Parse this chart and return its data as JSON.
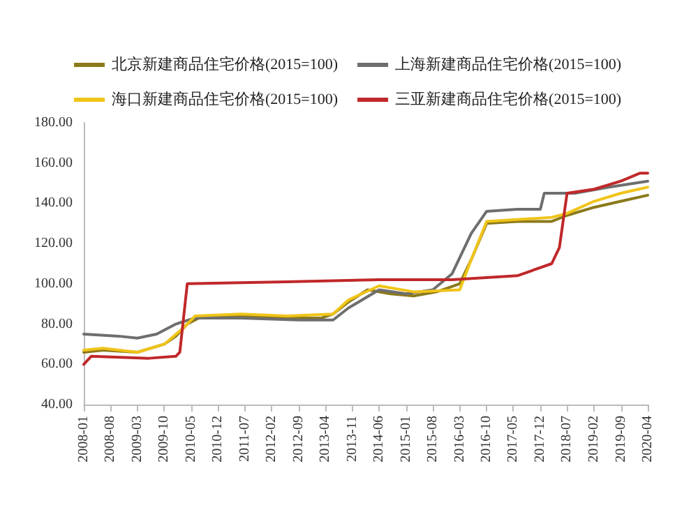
{
  "chart_data": {
    "type": "line",
    "legend": "top",
    "grid": false,
    "marker": "none",
    "line_style": "solid",
    "xlim": [
      "2008-01",
      "2020-04"
    ],
    "xticks": [
      "2008-01",
      "2008-08",
      "2009-03",
      "2009-10",
      "2010-05",
      "2010-12",
      "2011-07",
      "2012-02",
      "2012-09",
      "2013-04",
      "2013-11",
      "2014-06",
      "2015-01",
      "2015-08",
      "2016-03",
      "2016-10",
      "2017-05",
      "2017-12",
      "2018-07",
      "2019-02",
      "2019-09",
      "2020-04"
    ],
    "ylim": [
      40,
      180
    ],
    "yticks": [
      {
        "value": 40,
        "label": "40.00"
      },
      {
        "value": 60,
        "label": "60.00"
      },
      {
        "value": 80,
        "label": "80.00"
      },
      {
        "value": 100,
        "label": "100.00"
      },
      {
        "value": 120,
        "label": "120.00"
      },
      {
        "value": 140,
        "label": "140.00"
      },
      {
        "value": 160,
        "label": "160.00"
      },
      {
        "value": 180,
        "label": "180.00"
      }
    ],
    "series": [
      {
        "name": "北京新建商品住宅价格(2015=100)",
        "color": "#8b7a1a",
        "x": [
          "2008-01",
          "2008-06",
          "2009-03",
          "2009-10",
          "2010-01",
          "2010-04",
          "2010-07",
          "2011-06",
          "2012-06",
          "2013-03",
          "2013-06",
          "2013-10",
          "2014-03",
          "2014-09",
          "2015-03",
          "2015-09",
          "2016-03",
          "2016-06",
          "2016-10",
          "2017-06",
          "2018-03",
          "2018-07",
          "2019-02",
          "2019-09",
          "2020-04"
        ],
        "values": [
          66,
          67,
          66,
          70,
          74,
          80,
          83,
          84,
          83,
          83,
          85,
          91,
          97,
          95,
          94,
          96,
          100,
          112,
          130,
          131,
          131,
          134,
          138,
          141,
          144
        ]
      },
      {
        "name": "上海新建商品住宅价格(2015=100)",
        "color": "#6e6e6e",
        "x": [
          "2008-01",
          "2008-10",
          "2009-03",
          "2009-08",
          "2010-01",
          "2010-06",
          "2011-06",
          "2012-09",
          "2013-06",
          "2013-10",
          "2014-06",
          "2015-01",
          "2015-08",
          "2016-01",
          "2016-06",
          "2016-10",
          "2017-06",
          "2017-12",
          "2018-01",
          "2018-09",
          "2019-06",
          "2020-04"
        ],
        "values": [
          75,
          74,
          73,
          75,
          80,
          83,
          83,
          82,
          82,
          88,
          97,
          95,
          97,
          105,
          125,
          136,
          137,
          137,
          145,
          145,
          148,
          151
        ]
      },
      {
        "name": "海口新建商品住宅价格(2015=100)",
        "color": "#f0c419",
        "x": [
          "2008-01",
          "2008-06",
          "2009-03",
          "2009-10",
          "2010-03",
          "2010-06",
          "2011-06",
          "2012-06",
          "2013-06",
          "2013-10",
          "2014-06",
          "2015-03",
          "2016-03",
          "2016-06",
          "2016-10",
          "2018-03",
          "2018-07",
          "2019-02",
          "2019-09",
          "2020-04"
        ],
        "values": [
          67,
          68,
          66,
          70,
          78,
          84,
          85,
          84,
          85,
          92,
          99,
          96,
          97,
          112,
          131,
          133,
          135,
          141,
          145,
          148
        ]
      },
      {
        "name": "三亚新建商品住宅价格(2015=100)",
        "color": "#c0282a",
        "x": [
          "2008-01",
          "2008-03",
          "2009-06",
          "2010-01",
          "2010-02",
          "2010-04",
          "2012-06",
          "2014-06",
          "2016-01",
          "2017-06",
          "2018-03",
          "2018-05",
          "2018-07",
          "2019-02",
          "2019-09",
          "2020-02",
          "2020-04"
        ],
        "values": [
          60,
          64,
          63,
          64,
          66,
          100,
          101,
          102,
          102,
          104,
          110,
          118,
          145,
          147,
          151,
          155,
          155
        ]
      }
    ]
  }
}
